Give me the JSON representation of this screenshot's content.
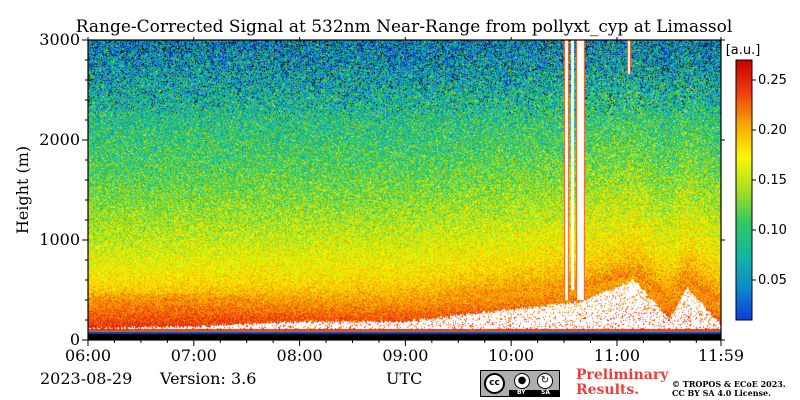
{
  "chart_data": {
    "type": "heatmap",
    "title": "Range-Corrected Signal at 532nm Near-Range from pollyxt_cyp at Limassol",
    "xlabel": "UTC",
    "ylabel": "Height (m)",
    "x_range": [
      "06:00",
      "11:59"
    ],
    "x_ticks": [
      "06:00",
      "07:00",
      "08:00",
      "09:00",
      "10:00",
      "11:00",
      "11:59"
    ],
    "ylim": [
      0,
      3000
    ],
    "y_ticks": [
      0,
      1000,
      2000,
      3000
    ],
    "colorbar": {
      "label": "[a.u.]",
      "range": [
        0.01,
        0.27
      ],
      "ticks": [
        "0.05",
        "0.10",
        "0.15",
        "0.20",
        "0.25"
      ],
      "colormap": "jet"
    },
    "colormap_stops": [
      "#0a3cd8",
      "#0a8ccc",
      "#10b8a0",
      "#30c860",
      "#a8e020",
      "#f8f800",
      "#f8a800",
      "#f03c0c",
      "#c80000"
    ],
    "background_color": "#ffffff",
    "saturated_color": "#ffffff",
    "low_signal_color": "#000000",
    "signal_structure": {
      "surface_layer_top_m": 100,
      "aerosol_layer_top_m": [
        {
          "time": "06:00",
          "height": 450
        },
        {
          "time": "07:00",
          "height": 450
        },
        {
          "time": "08:00",
          "height": 420
        },
        {
          "time": "09:00",
          "height": 400
        },
        {
          "time": "10:00",
          "height": 480
        },
        {
          "time": "10:40",
          "height": 520
        },
        {
          "time": "11:10",
          "height": 650
        },
        {
          "time": "11:30",
          "height": 400
        },
        {
          "time": "11:40",
          "height": 600
        },
        {
          "time": "11:59",
          "height": 350
        }
      ],
      "saturation_top_m": [
        {
          "time": "06:00",
          "height": 110
        },
        {
          "time": "07:00",
          "height": 130
        },
        {
          "time": "08:00",
          "height": 180
        },
        {
          "time": "09:00",
          "height": 180
        },
        {
          "time": "10:00",
          "height": 300
        },
        {
          "time": "10:40",
          "height": 380
        },
        {
          "time": "11:10",
          "height": 600
        },
        {
          "time": "11:30",
          "height": 200
        },
        {
          "time": "11:40",
          "height": 520
        },
        {
          "time": "11:59",
          "height": 150
        }
      ],
      "cloud_columns": [
        {
          "time_start": "10:30",
          "time_end": "10:33",
          "height_bottom": 400,
          "height_top": 3000
        },
        {
          "time_start": "10:34",
          "time_end": "10:36",
          "height_bottom": 500,
          "height_top": 3000
        },
        {
          "time_start": "10:37",
          "time_end": "10:42",
          "height_bottom": 400,
          "height_top": 3000
        },
        {
          "time_start": "11:06",
          "time_end": "11:08",
          "height_bottom": 2660,
          "height_top": 3000
        }
      ]
    }
  },
  "footer": {
    "date": "2023-08-29",
    "version": "Version: 3.6",
    "xlabel": "UTC",
    "preliminary": "Preliminary Results.",
    "copyright_line1": "© TROPOS & ECoE 2023.",
    "copyright_line2": "CC BY SA 4.0 License.",
    "license_badge": {
      "cc": "cc",
      "by": "BY",
      "sa": "SA"
    }
  }
}
